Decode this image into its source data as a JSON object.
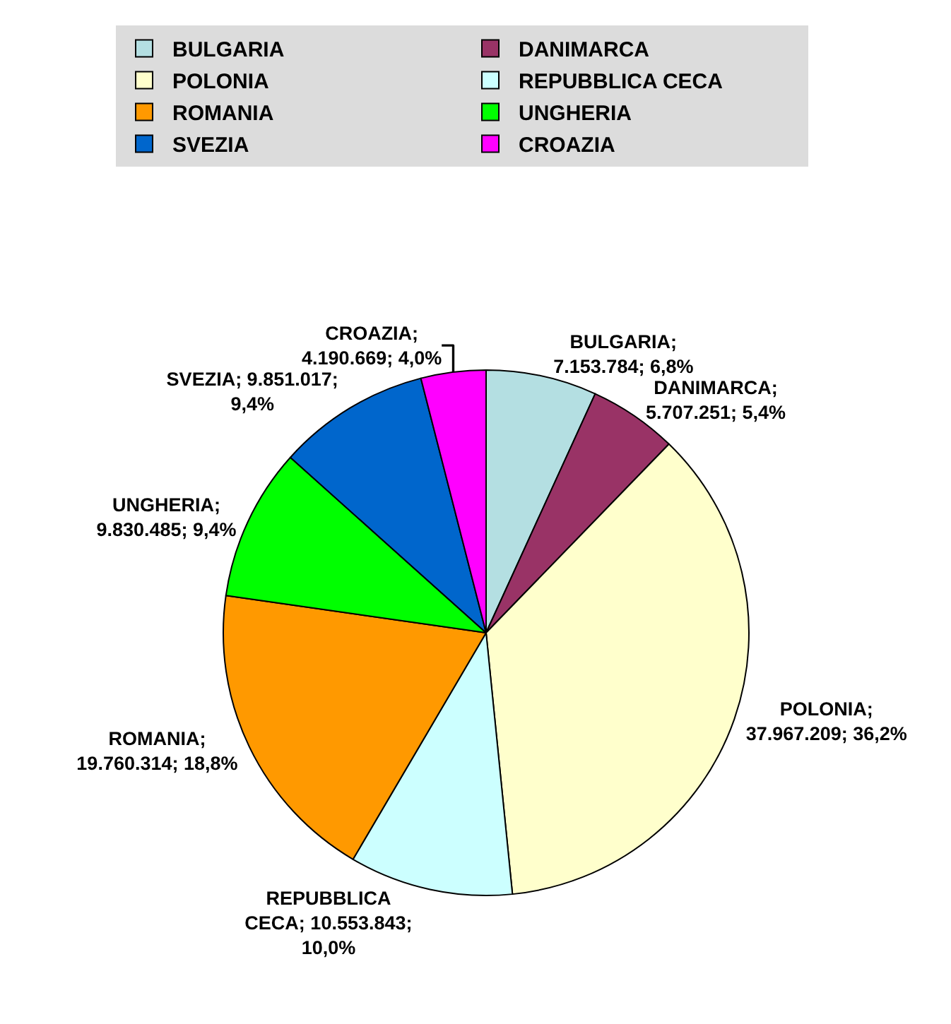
{
  "chart_data": {
    "type": "pie",
    "categories": [
      "BULGARIA",
      "DANIMARCA",
      "POLONIA",
      "REPUBBLICA CECA",
      "ROMANIA",
      "UNGHERIA",
      "SVEZIA",
      "CROAZIA"
    ],
    "values": [
      7153784,
      5707251,
      37967209,
      10553843,
      19760314,
      9830485,
      9851017,
      4190669
    ],
    "colors": [
      "#b4dfe2",
      "#993366",
      "#ffffcc",
      "#ccffff",
      "#ff9900",
      "#00ff00",
      "#0066cc",
      "#ff00ff"
    ],
    "value_labels": [
      "BULGARIA;\n7.153.784; 6,8%",
      "DANIMARCA;\n5.707.251; 5,4%",
      "POLONIA;\n37.967.209; 36,2%",
      "REPUBBLICA\nCECA; 10.553.843;\n10,0%",
      "ROMANIA;\n19.760.314; 18,8%",
      "UNGHERIA;\n9.830.485; 9,4%",
      "SVEZIA; 9.851.017;\n9,4%",
      "CROAZIA;\n4.190.669; 4,0%"
    ],
    "legend": "top"
  }
}
